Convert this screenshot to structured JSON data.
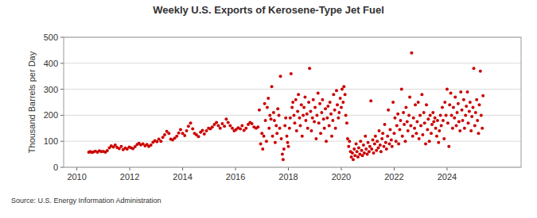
{
  "chart_data": {
    "type": "scatter",
    "title": "Weekly U.S. Exports of Kerosene-Type Jet Fuel",
    "y_label": "Thousand Barrels per Day",
    "source": "Source: U.S. Energy Information Administration",
    "color": "#cc0000",
    "marker": "circle",
    "grid": true,
    "xlim": [
      2009.5,
      2026.8
    ],
    "ylim": [
      0,
      500
    ],
    "xticks": [
      2010,
      2012,
      2014,
      2016,
      2018,
      2020,
      2022,
      2024
    ],
    "yticks": [
      0,
      100,
      200,
      300,
      400,
      500
    ],
    "x": [
      2010.45,
      2010.5,
      2010.56,
      2010.62,
      2010.7,
      2010.78,
      2010.85,
      2010.92,
      2011.0,
      2011.08,
      2011.15,
      2011.23,
      2011.3,
      2011.38,
      2011.45,
      2011.52,
      2011.6,
      2011.68,
      2011.75,
      2011.83,
      2011.9,
      2011.98,
      2012.05,
      2012.12,
      2012.2,
      2012.28,
      2012.35,
      2012.42,
      2012.5,
      2012.58,
      2012.65,
      2012.72,
      2012.8,
      2012.88,
      2012.95,
      2013.03,
      2013.1,
      2013.18,
      2013.25,
      2013.32,
      2013.4,
      2013.48,
      2013.55,
      2013.62,
      2013.7,
      2013.78,
      2013.85,
      2013.92,
      2014.0,
      2014.08,
      2014.15,
      2014.22,
      2014.3,
      2014.38,
      2014.45,
      2014.52,
      2014.6,
      2014.68,
      2014.75,
      2014.82,
      2014.9,
      2014.98,
      2015.05,
      2015.12,
      2015.2,
      2015.28,
      2015.35,
      2015.42,
      2015.5,
      2015.58,
      2015.65,
      2015.72,
      2015.8,
      2015.88,
      2015.95,
      2016.02,
      2016.1,
      2016.18,
      2016.25,
      2016.32,
      2016.4,
      2016.48,
      2016.55,
      2016.62,
      2016.7,
      2016.78,
      2016.85,
      2016.9,
      2016.95,
      2017.0,
      2017.03,
      2017.07,
      2017.1,
      2017.13,
      2017.17,
      2017.2,
      2017.24,
      2017.27,
      2017.3,
      2017.34,
      2017.37,
      2017.4,
      2017.44,
      2017.47,
      2017.5,
      2017.54,
      2017.57,
      2017.6,
      2017.64,
      2017.67,
      2017.7,
      2017.73,
      2017.77,
      2017.8,
      2017.83,
      2017.87,
      2017.9,
      2017.94,
      2017.97,
      2018.0,
      2018.04,
      2018.07,
      2018.1,
      2018.14,
      2018.17,
      2018.21,
      2018.24,
      2018.28,
      2018.31,
      2018.35,
      2018.38,
      2018.42,
      2018.45,
      2018.49,
      2018.52,
      2018.56,
      2018.59,
      2018.63,
      2018.66,
      2018.7,
      2018.73,
      2018.77,
      2018.8,
      2018.84,
      2018.87,
      2018.91,
      2018.94,
      2018.98,
      2019.01,
      2019.05,
      2019.08,
      2019.12,
      2019.15,
      2019.19,
      2019.22,
      2019.26,
      2019.29,
      2019.33,
      2019.36,
      2019.4,
      2019.43,
      2019.47,
      2019.5,
      2019.54,
      2019.57,
      2019.61,
      2019.64,
      2019.68,
      2019.71,
      2019.75,
      2019.78,
      2019.82,
      2019.85,
      2019.89,
      2019.92,
      2019.96,
      2020.0,
      2020.03,
      2020.07,
      2020.1,
      2020.14,
      2020.17,
      2020.21,
      2020.24,
      2020.28,
      2020.31,
      2020.35,
      2020.38,
      2020.42,
      2020.45,
      2020.49,
      2020.52,
      2020.56,
      2020.59,
      2020.63,
      2020.66,
      2020.7,
      2020.73,
      2020.77,
      2020.8,
      2020.84,
      2020.87,
      2020.91,
      2020.94,
      2020.98,
      2021.01,
      2021.05,
      2021.08,
      2021.12,
      2021.15,
      2021.19,
      2021.22,
      2021.26,
      2021.29,
      2021.33,
      2021.36,
      2021.4,
      2021.43,
      2021.47,
      2021.5,
      2021.54,
      2021.57,
      2021.61,
      2021.64,
      2021.68,
      2021.71,
      2021.75,
      2021.78,
      2021.82,
      2021.85,
      2021.89,
      2021.92,
      2021.96,
      2022.0,
      2022.03,
      2022.07,
      2022.1,
      2022.14,
      2022.17,
      2022.21,
      2022.24,
      2022.28,
      2022.31,
      2022.35,
      2022.38,
      2022.42,
      2022.45,
      2022.49,
      2022.52,
      2022.56,
      2022.59,
      2022.63,
      2022.66,
      2022.7,
      2022.73,
      2022.77,
      2022.8,
      2022.84,
      2022.87,
      2022.91,
      2022.94,
      2022.98,
      2023.01,
      2023.05,
      2023.08,
      2023.12,
      2023.15,
      2023.19,
      2023.22,
      2023.26,
      2023.29,
      2023.33,
      2023.36,
      2023.4,
      2023.43,
      2023.47,
      2023.5,
      2023.54,
      2023.57,
      2023.61,
      2023.64,
      2023.68,
      2023.71,
      2023.75,
      2023.78,
      2023.82,
      2023.85,
      2023.89,
      2023.92,
      2023.96,
      2024.0,
      2024.03,
      2024.07,
      2024.1,
      2024.14,
      2024.17,
      2024.21,
      2024.24,
      2024.28,
      2024.31,
      2024.35,
      2024.38,
      2024.42,
      2024.45,
      2024.49,
      2024.52,
      2024.56,
      2024.59,
      2024.63,
      2024.66,
      2024.7,
      2024.73,
      2024.77,
      2024.8,
      2024.84,
      2024.87,
      2024.91,
      2024.94,
      2024.98,
      2025.01,
      2025.05,
      2025.08,
      2025.12,
      2025.15,
      2025.19,
      2025.22,
      2025.26,
      2025.29,
      2025.33,
      2025.36
    ],
    "values": [
      58,
      60,
      57,
      59,
      62,
      58,
      63,
      60,
      61,
      58,
      64,
      75,
      82,
      78,
      85,
      76,
      72,
      80,
      68,
      74,
      70,
      78,
      75,
      72,
      79,
      88,
      92,
      86,
      90,
      82,
      88,
      80,
      85,
      96,
      102,
      98,
      108,
      100,
      115,
      125,
      138,
      130,
      108,
      105,
      112,
      120,
      132,
      145,
      130,
      122,
      140,
      158,
      170,
      148,
      130,
      125,
      118,
      135,
      142,
      128,
      140,
      150,
      148,
      155,
      165,
      172,
      160,
      150,
      168,
      158,
      185,
      172,
      160,
      150,
      140,
      145,
      152,
      148,
      160,
      142,
      150,
      165,
      172,
      168,
      155,
      150,
      155,
      220,
      90,
      130,
      70,
      120,
      245,
      180,
      100,
      230,
      265,
      150,
      200,
      185,
      310,
      120,
      210,
      180,
      95,
      160,
      130,
      225,
      200,
      150,
      350,
      110,
      50,
      30,
      70,
      160,
      190,
      120,
      95,
      80,
      150,
      190,
      360,
      230,
      250,
      200,
      170,
      260,
      140,
      215,
      280,
      190,
      160,
      240,
      120,
      200,
      230,
      270,
      180,
      205,
      150,
      250,
      380,
      215,
      140,
      190,
      260,
      175,
      230,
      110,
      200,
      285,
      170,
      245,
      130,
      210,
      260,
      185,
      150,
      225,
      100,
      190,
      235,
      160,
      250,
      205,
      120,
      180,
      280,
      220,
      150,
      295,
      240,
      190,
      210,
      265,
      230,
      300,
      250,
      310,
      280,
      200,
      170,
      110,
      80,
      100,
      60,
      40,
      55,
      30,
      70,
      45,
      90,
      60,
      40,
      75,
      50,
      100,
      65,
      45,
      85,
      55,
      120,
      70,
      50,
      95,
      60,
      80,
      255,
      70,
      105,
      55,
      90,
      120,
      65,
      100,
      75,
      140,
      85,
      60,
      110,
      130,
      80,
      165,
      95,
      70,
      120,
      220,
      90,
      145,
      105,
      80,
      250,
      130,
      190,
      100,
      160,
      205,
      90,
      145,
      180,
      300,
      120,
      210,
      165,
      100,
      230,
      175,
      140,
      200,
      270,
      160,
      440,
      120,
      190,
      150,
      240,
      130,
      175,
      250,
      110,
      200,
      160,
      280,
      125,
      210,
      170,
      90,
      240,
      145,
      185,
      100,
      200,
      130,
      165,
      210,
      175,
      190,
      150,
      120,
      180,
      95,
      140,
      200,
      160,
      230,
      180,
      110,
      250,
      200,
      300,
      170,
      80,
      240,
      285,
      200,
      150,
      230,
      190,
      270,
      160,
      210,
      245,
      175,
      140,
      290,
      220,
      180,
      260,
      150,
      200,
      235,
      290,
      170,
      215,
      250,
      140,
      195,
      230,
      380,
      160,
      210,
      260,
      180,
      130,
      240,
      370,
      200,
      150,
      275
    ]
  }
}
